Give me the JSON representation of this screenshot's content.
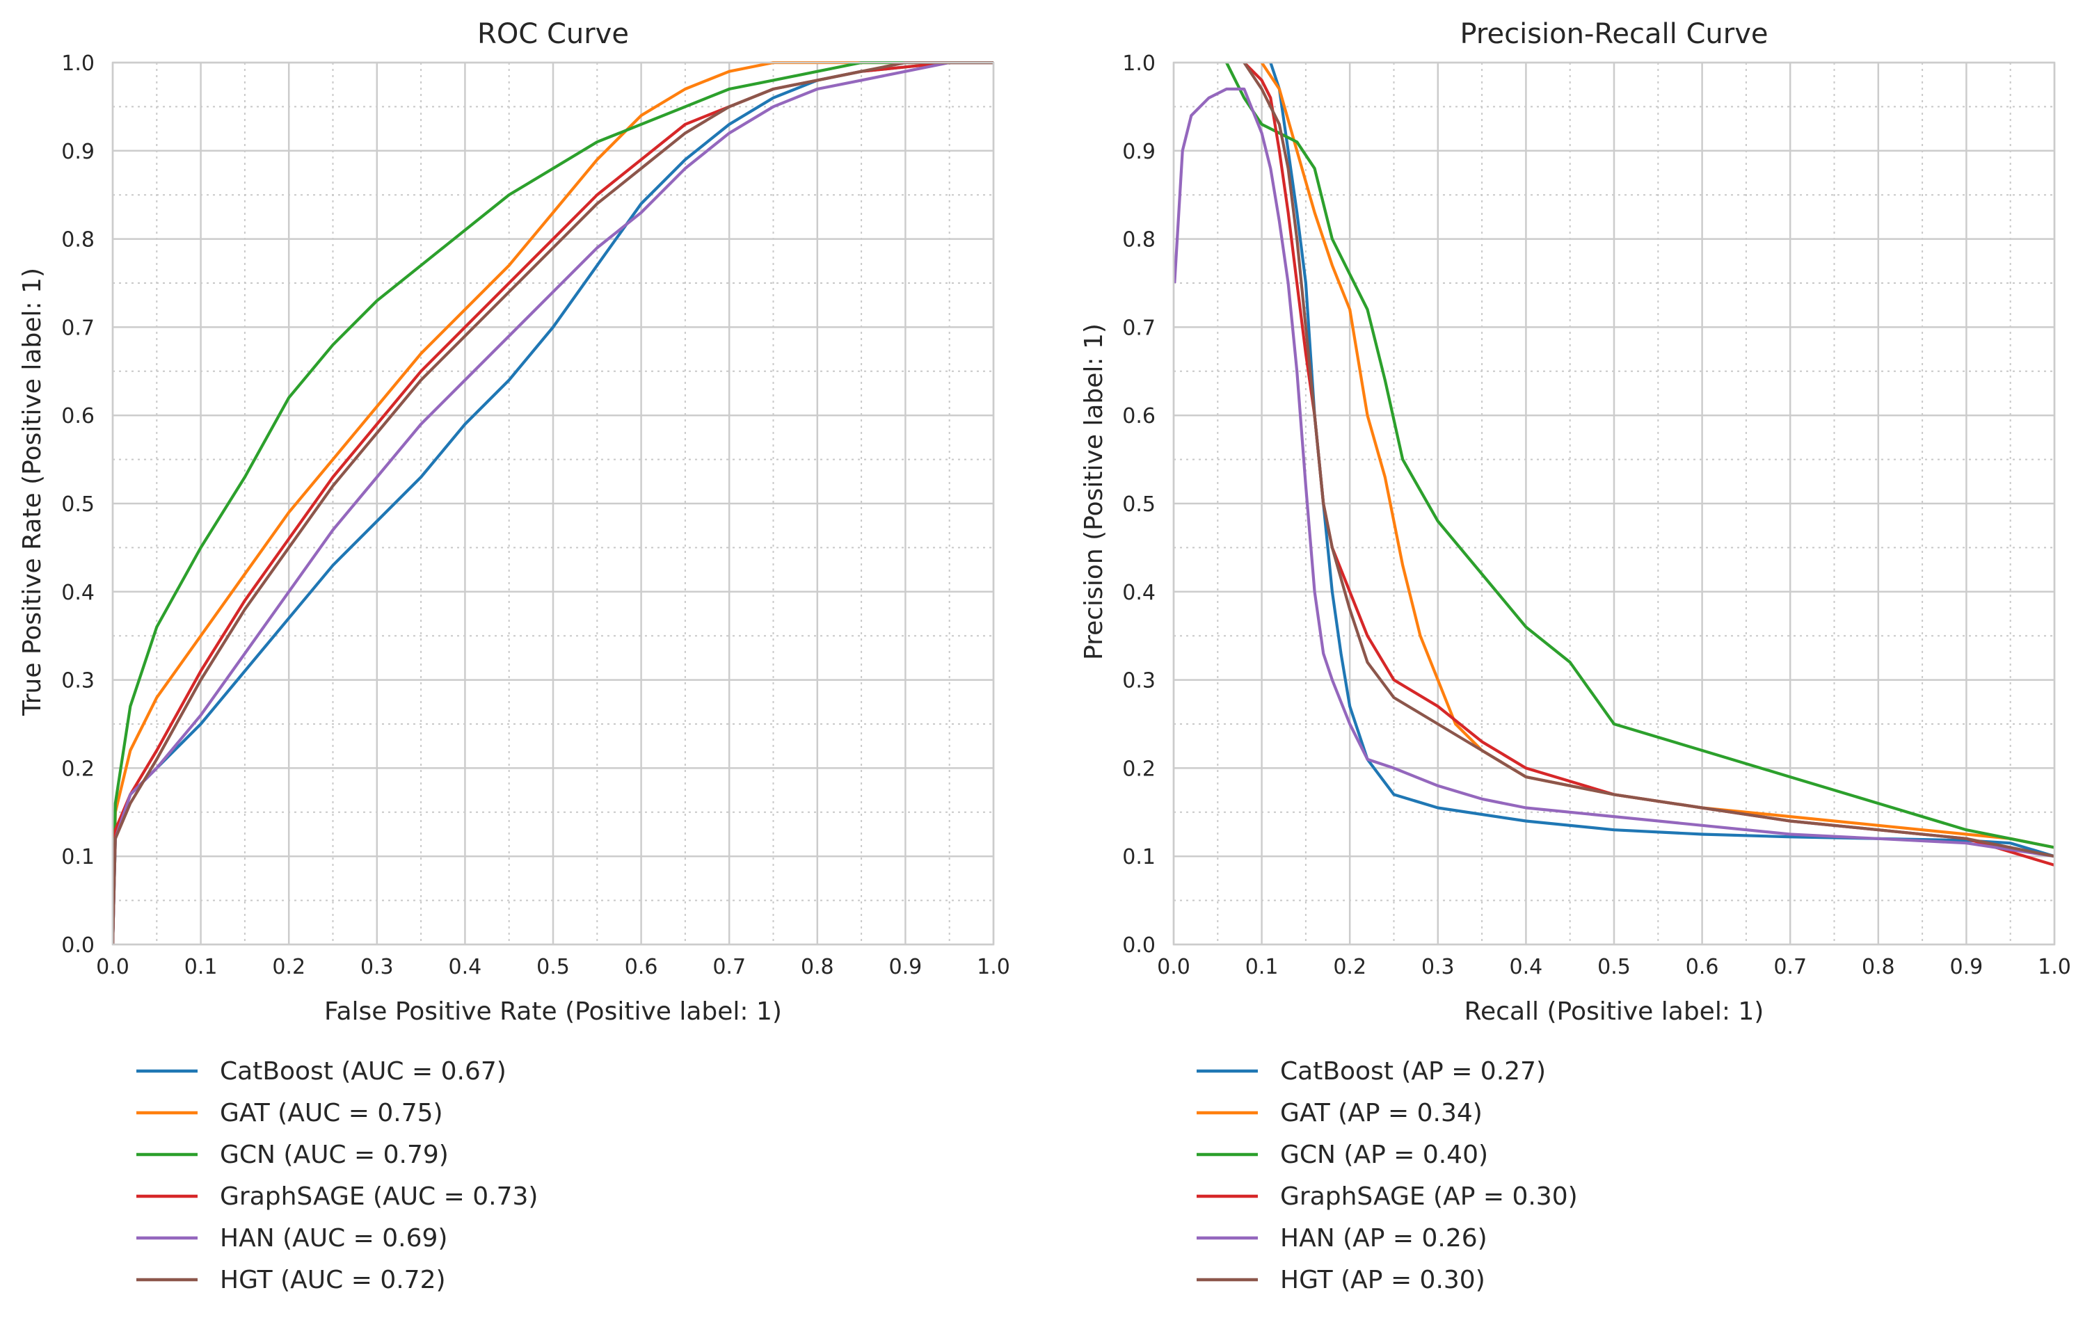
{
  "chart_data": [
    {
      "type": "line",
      "title": "ROC Curve",
      "xlabel": "False Positive Rate (Positive label: 1)",
      "ylabel": "True Positive Rate (Positive label: 1)",
      "xlim": [
        0,
        1
      ],
      "ylim": [
        0,
        1
      ],
      "xticks": [
        "0.0",
        "0.1",
        "0.2",
        "0.3",
        "0.4",
        "0.5",
        "0.6",
        "0.7",
        "0.8",
        "0.9",
        "1.0"
      ],
      "yticks": [
        "0.0",
        "0.1",
        "0.2",
        "0.3",
        "0.4",
        "0.5",
        "0.6",
        "0.7",
        "0.8",
        "0.9",
        "1.0"
      ],
      "grid": true,
      "minor_grid": true,
      "legend_position": "below",
      "series": [
        {
          "name": "CatBoost (AUC = 0.67)",
          "color": "#1f77b4",
          "x": [
            0,
            0.003,
            0.02,
            0.05,
            0.1,
            0.15,
            0.2,
            0.25,
            0.3,
            0.35,
            0.4,
            0.45,
            0.5,
            0.55,
            0.6,
            0.65,
            0.7,
            0.75,
            0.8,
            0.85,
            0.9,
            0.95,
            1.0
          ],
          "y": [
            0,
            0.12,
            0.17,
            0.2,
            0.25,
            0.31,
            0.37,
            0.43,
            0.48,
            0.53,
            0.59,
            0.64,
            0.7,
            0.77,
            0.84,
            0.89,
            0.93,
            0.96,
            0.98,
            0.99,
            0.995,
            1.0,
            1.0
          ]
        },
        {
          "name": "GAT (AUC = 0.75)",
          "color": "#ff7f0e",
          "x": [
            0,
            0.003,
            0.02,
            0.05,
            0.1,
            0.15,
            0.2,
            0.25,
            0.3,
            0.35,
            0.4,
            0.45,
            0.5,
            0.55,
            0.6,
            0.65,
            0.7,
            0.75,
            0.8,
            0.85,
            0.9,
            0.95,
            1.0
          ],
          "y": [
            0,
            0.15,
            0.22,
            0.28,
            0.35,
            0.42,
            0.49,
            0.55,
            0.61,
            0.67,
            0.72,
            0.77,
            0.83,
            0.89,
            0.94,
            0.97,
            0.99,
            1.0,
            1.0,
            1.0,
            1.0,
            1.0,
            1.0
          ]
        },
        {
          "name": "GCN (AUC = 0.79)",
          "color": "#2ca02c",
          "x": [
            0,
            0.003,
            0.02,
            0.05,
            0.1,
            0.15,
            0.2,
            0.25,
            0.3,
            0.35,
            0.4,
            0.45,
            0.5,
            0.55,
            0.6,
            0.65,
            0.7,
            0.75,
            0.8,
            0.85,
            0.9,
            0.95,
            1.0
          ],
          "y": [
            0,
            0.16,
            0.27,
            0.36,
            0.45,
            0.53,
            0.62,
            0.68,
            0.73,
            0.77,
            0.81,
            0.85,
            0.88,
            0.91,
            0.93,
            0.95,
            0.97,
            0.98,
            0.99,
            1.0,
            1.0,
            1.0,
            1.0
          ]
        },
        {
          "name": "GraphSAGE (AUC = 0.73)",
          "color": "#d62728",
          "x": [
            0,
            0.003,
            0.02,
            0.05,
            0.1,
            0.15,
            0.2,
            0.25,
            0.3,
            0.35,
            0.4,
            0.45,
            0.5,
            0.55,
            0.6,
            0.65,
            0.7,
            0.75,
            0.8,
            0.85,
            0.9,
            0.95,
            1.0
          ],
          "y": [
            0,
            0.13,
            0.17,
            0.22,
            0.31,
            0.39,
            0.46,
            0.53,
            0.59,
            0.65,
            0.7,
            0.75,
            0.8,
            0.85,
            0.89,
            0.93,
            0.95,
            0.97,
            0.98,
            0.99,
            0.995,
            1.0,
            1.0
          ]
        },
        {
          "name": "HAN (AUC = 0.69)",
          "color": "#9467bd",
          "x": [
            0,
            0.003,
            0.02,
            0.05,
            0.1,
            0.15,
            0.2,
            0.25,
            0.3,
            0.35,
            0.4,
            0.45,
            0.5,
            0.55,
            0.6,
            0.65,
            0.7,
            0.75,
            0.8,
            0.85,
            0.9,
            0.95,
            1.0
          ],
          "y": [
            0,
            0.12,
            0.17,
            0.2,
            0.26,
            0.33,
            0.4,
            0.47,
            0.53,
            0.59,
            0.64,
            0.69,
            0.74,
            0.79,
            0.83,
            0.88,
            0.92,
            0.95,
            0.97,
            0.98,
            0.99,
            1.0,
            1.0
          ]
        },
        {
          "name": "HGT (AUC = 0.72)",
          "color": "#8c564b",
          "x": [
            0,
            0.003,
            0.02,
            0.05,
            0.1,
            0.15,
            0.2,
            0.25,
            0.3,
            0.35,
            0.4,
            0.45,
            0.5,
            0.55,
            0.6,
            0.65,
            0.7,
            0.75,
            0.8,
            0.85,
            0.9,
            0.95,
            1.0
          ],
          "y": [
            0,
            0.12,
            0.16,
            0.21,
            0.3,
            0.38,
            0.45,
            0.52,
            0.58,
            0.64,
            0.69,
            0.74,
            0.79,
            0.84,
            0.88,
            0.92,
            0.95,
            0.97,
            0.98,
            0.99,
            1.0,
            1.0,
            1.0
          ]
        }
      ]
    },
    {
      "type": "line",
      "title": "Precision-Recall Curve",
      "xlabel": "Recall (Positive label: 1)",
      "ylabel": "Precision (Positive label: 1)",
      "xlim": [
        0,
        1
      ],
      "ylim": [
        0,
        1
      ],
      "xticks": [
        "0.0",
        "0.1",
        "0.2",
        "0.3",
        "0.4",
        "0.5",
        "0.6",
        "0.7",
        "0.8",
        "0.9",
        "1.0"
      ],
      "yticks": [
        "0.0",
        "0.1",
        "0.2",
        "0.3",
        "0.4",
        "0.5",
        "0.6",
        "0.7",
        "0.8",
        "0.9",
        "1.0"
      ],
      "grid": true,
      "minor_grid": true,
      "legend_position": "below",
      "series": [
        {
          "name": "CatBoost (AP = 0.27)",
          "color": "#1f77b4",
          "x": [
            0.11,
            0.12,
            0.13,
            0.14,
            0.15,
            0.16,
            0.17,
            0.18,
            0.19,
            0.2,
            0.22,
            0.25,
            0.3,
            0.4,
            0.5,
            0.6,
            0.7,
            0.8,
            0.9,
            0.95,
            1.0
          ],
          "y": [
            1.0,
            0.97,
            0.9,
            0.83,
            0.75,
            0.6,
            0.5,
            0.4,
            0.33,
            0.27,
            0.21,
            0.17,
            0.155,
            0.14,
            0.13,
            0.125,
            0.122,
            0.12,
            0.118,
            0.115,
            0.1
          ]
        },
        {
          "name": "GAT (AP = 0.34)",
          "color": "#ff7f0e",
          "x": [
            0.1,
            0.12,
            0.14,
            0.16,
            0.18,
            0.2,
            0.22,
            0.24,
            0.26,
            0.28,
            0.3,
            0.32,
            0.35,
            0.4,
            0.5,
            0.6,
            0.7,
            0.8,
            0.9,
            0.95,
            1.0
          ],
          "y": [
            1.0,
            0.97,
            0.9,
            0.83,
            0.77,
            0.72,
            0.6,
            0.53,
            0.43,
            0.35,
            0.3,
            0.25,
            0.22,
            0.19,
            0.17,
            0.155,
            0.145,
            0.135,
            0.125,
            0.12,
            0.11
          ]
        },
        {
          "name": "GCN (AP = 0.40)",
          "color": "#2ca02c",
          "x": [
            0.06,
            0.08,
            0.1,
            0.12,
            0.14,
            0.16,
            0.18,
            0.2,
            0.22,
            0.24,
            0.26,
            0.3,
            0.35,
            0.4,
            0.45,
            0.5,
            0.6,
            0.7,
            0.8,
            0.9,
            1.0
          ],
          "y": [
            1.0,
            0.96,
            0.93,
            0.92,
            0.91,
            0.88,
            0.8,
            0.76,
            0.72,
            0.64,
            0.55,
            0.48,
            0.42,
            0.36,
            0.32,
            0.25,
            0.22,
            0.19,
            0.16,
            0.13,
            0.11
          ]
        },
        {
          "name": "GraphSAGE (AP = 0.30)",
          "color": "#d62728",
          "x": [
            0.08,
            0.1,
            0.11,
            0.12,
            0.13,
            0.14,
            0.15,
            0.16,
            0.17,
            0.18,
            0.2,
            0.22,
            0.25,
            0.3,
            0.35,
            0.4,
            0.5,
            0.6,
            0.7,
            0.8,
            0.9,
            1.0
          ],
          "y": [
            1.0,
            0.98,
            0.96,
            0.9,
            0.83,
            0.75,
            0.67,
            0.6,
            0.5,
            0.45,
            0.4,
            0.35,
            0.3,
            0.27,
            0.23,
            0.2,
            0.17,
            0.155,
            0.14,
            0.13,
            0.12,
            0.09
          ]
        },
        {
          "name": "HAN (AP = 0.26)",
          "color": "#9467bd",
          "x": [
            0.001,
            0.01,
            0.02,
            0.04,
            0.06,
            0.08,
            0.1,
            0.11,
            0.12,
            0.13,
            0.14,
            0.15,
            0.16,
            0.17,
            0.18,
            0.2,
            0.22,
            0.25,
            0.3,
            0.35,
            0.4,
            0.5,
            0.6,
            0.7,
            0.8,
            0.9,
            1.0
          ],
          "y": [
            0.75,
            0.9,
            0.94,
            0.96,
            0.97,
            0.97,
            0.92,
            0.88,
            0.82,
            0.75,
            0.65,
            0.52,
            0.4,
            0.33,
            0.3,
            0.25,
            0.21,
            0.2,
            0.18,
            0.165,
            0.155,
            0.145,
            0.135,
            0.125,
            0.12,
            0.115,
            0.1
          ]
        },
        {
          "name": "HGT (AP = 0.30)",
          "color": "#8c564b",
          "x": [
            0.08,
            0.1,
            0.12,
            0.13,
            0.14,
            0.15,
            0.16,
            0.17,
            0.18,
            0.2,
            0.22,
            0.25,
            0.3,
            0.35,
            0.4,
            0.5,
            0.6,
            0.7,
            0.8,
            0.9,
            1.0
          ],
          "y": [
            1.0,
            0.97,
            0.93,
            0.88,
            0.8,
            0.7,
            0.6,
            0.5,
            0.45,
            0.38,
            0.32,
            0.28,
            0.25,
            0.22,
            0.19,
            0.17,
            0.155,
            0.14,
            0.13,
            0.12,
            0.1
          ]
        }
      ]
    }
  ]
}
